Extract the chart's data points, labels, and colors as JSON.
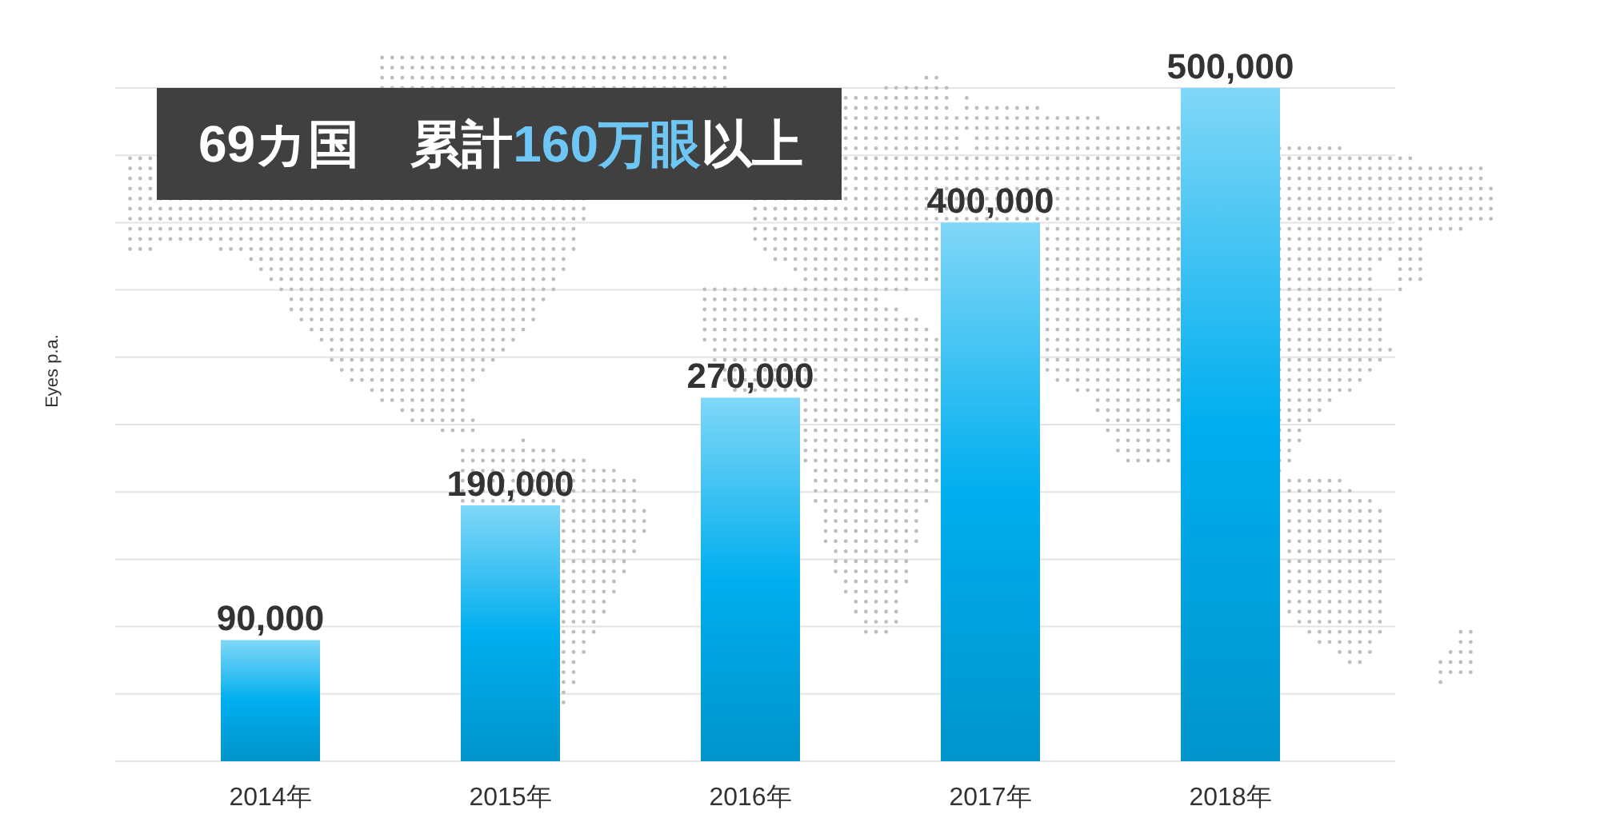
{
  "chart_data": {
    "type": "bar",
    "title": "69カ国　累計160万眼以上",
    "ylabel": "Eyes p.a.",
    "categories": [
      "2014年",
      "2015年",
      "2016年",
      "2017年",
      "2018年"
    ],
    "values": [
      90000,
      190000,
      270000,
      400000,
      500000
    ],
    "color": "#00aeef",
    "value_labels": [
      "90,000",
      "190,000",
      "270,000",
      "400,000",
      "500,000"
    ],
    "grid": "y",
    "tick_labels": "x"
  }
}
